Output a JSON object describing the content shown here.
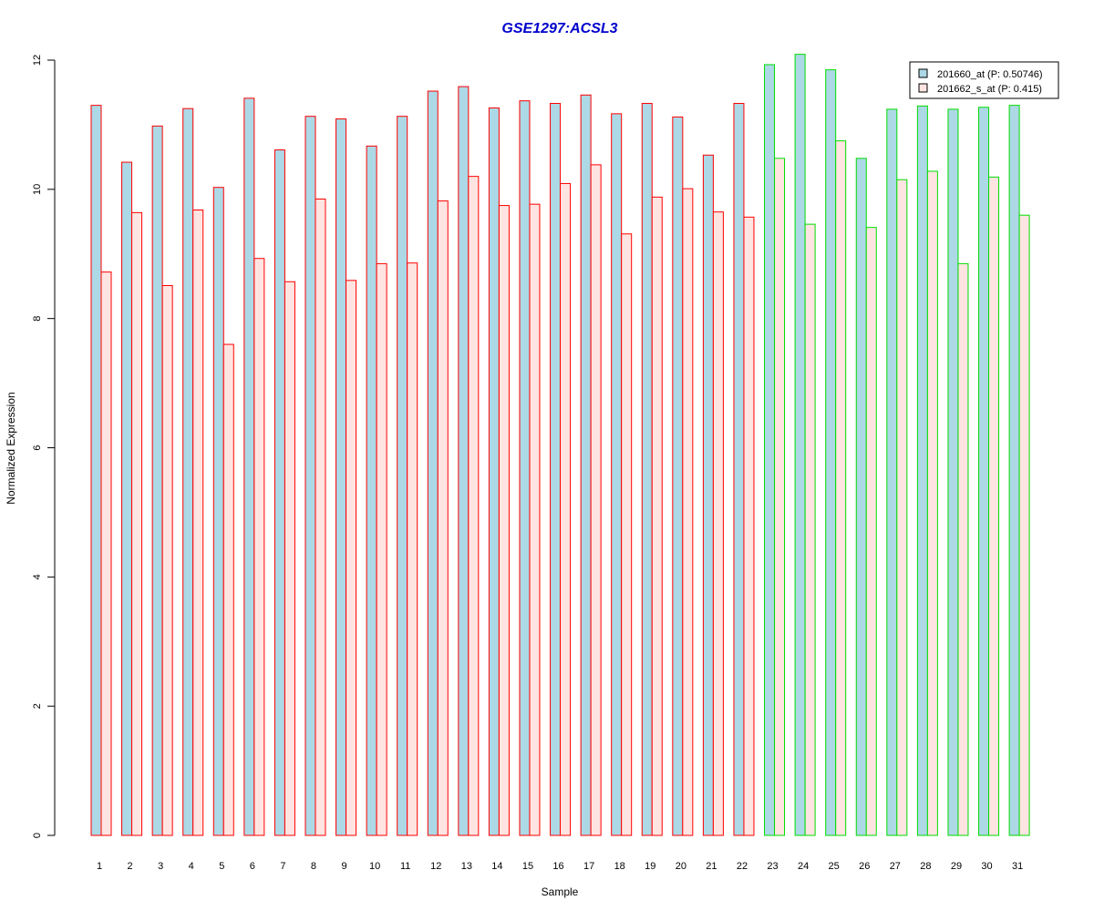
{
  "chart_data": {
    "type": "bar",
    "title": "GSE1297:ACSL3",
    "title_color": "#0000cc",
    "xlabel": "Sample",
    "ylabel": "Normalized Expression",
    "ylim": [
      0,
      12
    ],
    "y_ticks": [
      0,
      2,
      4,
      6,
      8,
      10,
      12
    ],
    "grid": false,
    "legend_position": "top-right",
    "categories": [
      "1",
      "2",
      "3",
      "4",
      "5",
      "6",
      "7",
      "8",
      "9",
      "10",
      "11",
      "12",
      "13",
      "14",
      "15",
      "16",
      "17",
      "18",
      "19",
      "20",
      "21",
      "22",
      "23",
      "24",
      "25",
      "26",
      "27",
      "28",
      "29",
      "30",
      "31"
    ],
    "group_border_colors": [
      "#ff0000",
      "#ff0000",
      "#ff0000",
      "#ff0000",
      "#ff0000",
      "#ff0000",
      "#ff0000",
      "#ff0000",
      "#ff0000",
      "#ff0000",
      "#ff0000",
      "#ff0000",
      "#ff0000",
      "#ff0000",
      "#ff0000",
      "#ff0000",
      "#ff0000",
      "#ff0000",
      "#ff0000",
      "#ff0000",
      "#ff0000",
      "#ff0000",
      "#00dd00",
      "#00dd00",
      "#00dd00",
      "#00dd00",
      "#00dd00",
      "#00dd00",
      "#00dd00",
      "#00dd00",
      "#00dd00"
    ],
    "series": [
      {
        "name": "201660_at (P: 0.50746)",
        "fill_color": "#add8e6",
        "values": [
          11.3,
          10.42,
          10.98,
          11.25,
          10.03,
          11.41,
          10.61,
          11.13,
          11.09,
          10.67,
          11.13,
          11.52,
          11.59,
          11.26,
          11.37,
          11.33,
          11.46,
          11.17,
          11.33,
          11.12,
          10.53,
          11.33,
          11.93,
          12.09,
          11.85,
          10.48,
          11.24,
          11.29,
          11.24,
          11.27,
          11.3
        ]
      },
      {
        "name": "201662_s_at (P: 0.415)",
        "fill_color": "#ffe4e1",
        "values": [
          8.72,
          9.64,
          8.51,
          9.68,
          7.6,
          8.93,
          8.57,
          9.85,
          8.59,
          8.85,
          8.86,
          9.82,
          10.2,
          9.75,
          9.77,
          10.09,
          10.38,
          9.31,
          9.88,
          10.01,
          9.65,
          9.57,
          10.48,
          9.46,
          10.75,
          9.41,
          10.15,
          10.28,
          8.85,
          10.19,
          9.6
        ]
      }
    ]
  }
}
